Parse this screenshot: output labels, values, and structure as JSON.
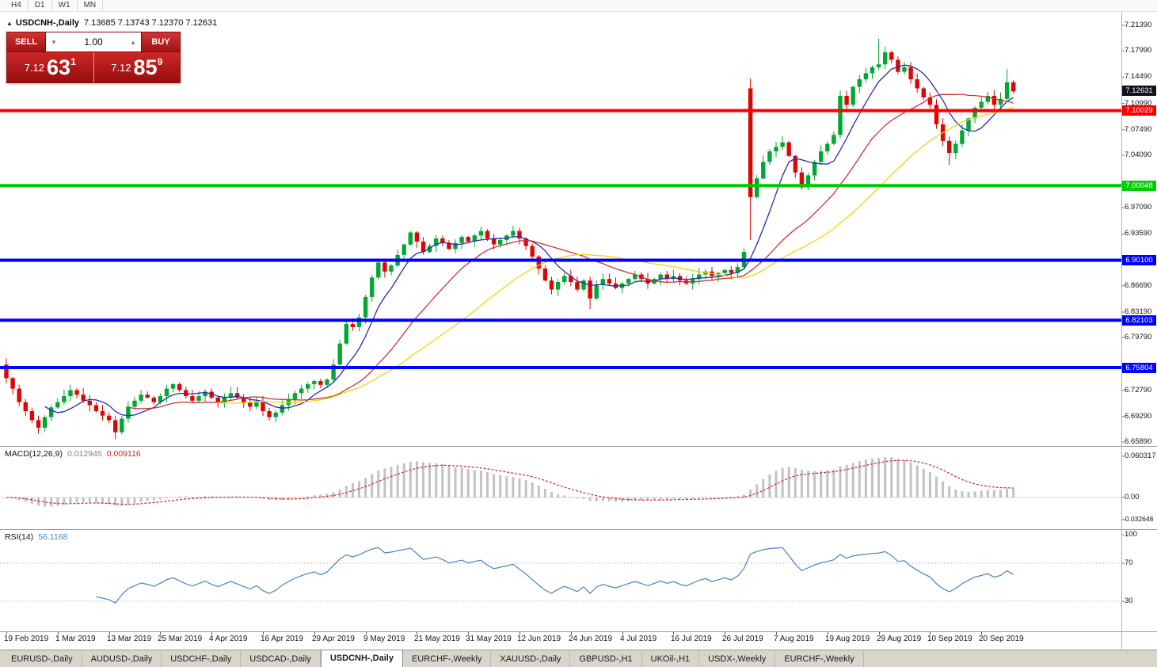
{
  "periods_toolbar": {
    "items": [
      "H4",
      "D1",
      "W1",
      "MN"
    ]
  },
  "chart_header": {
    "collapse_icon": "▲",
    "symbol": "USDCNH-,Daily",
    "ohlc": "7.13685 7.13743 7.12370 7.12631"
  },
  "trade_panel": {
    "sell_label": "SELL",
    "buy_label": "BUY",
    "volume": "1.00",
    "spinner_up": "▲",
    "spinner_down": "▼",
    "sell_price_main": "7.12",
    "sell_price_big": "63",
    "sell_price_sup": "1",
    "buy_price_main": "7.12",
    "buy_price_big": "85",
    "buy_price_sup": "9"
  },
  "colors": {
    "up": "#00A832",
    "down": "#DE0602",
    "ma_fast": "#2A2AB0",
    "ma_mid": "#CC3333",
    "ma_slow": "#EFD70A",
    "current_badge": "#11111E",
    "macd_hist": "#C2C2C2",
    "macd_signal": "#CC2A2A",
    "rsi_line": "#4A82C4"
  },
  "chart_data": {
    "type": "candlestick",
    "title": "USDCNH-,Daily",
    "price_min": 6.6536,
    "price_max": 7.2318,
    "closes": [
      6.744,
      6.73,
      6.712,
      6.7,
      6.688,
      6.678,
      6.692,
      6.705,
      6.712,
      6.72,
      6.728,
      6.722,
      6.714,
      6.708,
      6.7,
      6.694,
      6.688,
      6.672,
      6.69,
      6.706,
      6.714,
      6.722,
      6.718,
      6.712,
      6.72,
      6.73,
      6.736,
      6.728,
      6.72,
      6.714,
      6.72,
      6.726,
      6.718,
      6.712,
      6.718,
      6.724,
      6.718,
      6.712,
      6.706,
      6.712,
      6.7,
      6.692,
      6.698,
      6.708,
      6.716,
      6.724,
      6.73,
      6.736,
      6.74,
      6.735,
      6.742,
      6.762,
      6.79,
      6.816,
      6.812,
      6.825,
      6.852,
      6.878,
      6.898,
      6.886,
      6.894,
      6.908,
      6.922,
      6.938,
      6.926,
      6.912,
      6.92,
      6.93,
      6.924,
      6.916,
      6.924,
      6.932,
      6.926,
      6.934,
      6.94,
      6.93,
      6.922,
      6.928,
      6.934,
      6.94,
      6.93,
      6.92,
      6.906,
      6.89,
      6.874,
      6.862,
      6.872,
      6.88,
      6.872,
      6.862,
      6.874,
      6.85,
      6.868,
      6.876,
      6.87,
      6.864,
      6.87,
      6.876,
      6.882,
      6.876,
      6.87,
      6.876,
      6.882,
      6.876,
      6.88,
      6.874,
      6.87,
      6.876,
      6.882,
      6.886,
      6.88,
      6.884,
      6.888,
      6.884,
      6.892,
      6.912,
      6.985,
      7.01,
      7.032,
      7.046,
      7.052,
      7.058,
      7.04,
      7.018,
      6.998,
      7.014,
      7.032,
      7.046,
      7.056,
      7.068,
      7.12,
      7.108,
      7.132,
      7.142,
      7.15,
      7.158,
      7.162,
      7.178,
      7.168,
      7.152,
      7.158,
      7.142,
      7.13,
      7.118,
      7.108,
      7.082,
      7.06,
      7.044,
      7.056,
      7.074,
      7.09,
      7.104,
      7.112,
      7.12,
      7.108,
      7.116,
      7.138,
      7.126
    ],
    "overrides": [
      {
        "i": 0,
        "o": 6.762
      },
      {
        "i": 5,
        "l": 6.67
      },
      {
        "i": 17,
        "l": 6.663
      },
      {
        "i": 91,
        "l": 6.836
      },
      {
        "i": 116,
        "o": 7.13,
        "h": 7.143,
        "l": 6.928
      },
      {
        "i": 136,
        "h": 7.196
      },
      {
        "i": 147,
        "l": 7.028
      },
      {
        "i": 156,
        "h": 7.156
      }
    ],
    "moving_averages": [
      {
        "period": 7,
        "color_key": "ma_fast"
      },
      {
        "period": 20,
        "color_key": "ma_mid"
      },
      {
        "period": 34,
        "color_key": "ma_slow"
      }
    ],
    "hlines": [
      {
        "value": 7.10029,
        "label": "7.10029",
        "color": "#FF0000"
      },
      {
        "value": 7.00048,
        "label": "7.00048",
        "color": "#00CC00"
      },
      {
        "value": 6.901,
        "label": "6.90100",
        "color": "#0000FF"
      },
      {
        "value": 6.82103,
        "label": "6.82103",
        "color": "#0000FF"
      },
      {
        "value": 6.75804,
        "label": "6.75804",
        "color": "#0000FF"
      }
    ],
    "current_price": {
      "value": 7.12631,
      "label": "7.12631"
    },
    "y_ticks": [
      {
        "value": 7.2139,
        "label": "7.21390"
      },
      {
        "value": 7.1799,
        "label": "7.17990"
      },
      {
        "value": 7.1449,
        "label": "7.14490"
      },
      {
        "value": 7.1099,
        "label": "7.10990"
      },
      {
        "value": 7.0749,
        "label": "7.07490"
      },
      {
        "value": 7.0409,
        "label": "7.04090"
      },
      {
        "value": 6.9709,
        "label": "6.97090"
      },
      {
        "value": 6.9359,
        "label": "6.93590"
      },
      {
        "value": 6.8669,
        "label": "6.86690"
      },
      {
        "value": 6.8319,
        "label": "6.83190"
      },
      {
        "value": 6.7979,
        "label": "6.79790"
      },
      {
        "value": 6.7279,
        "label": "6.72790"
      },
      {
        "value": 6.6929,
        "label": "6.69290"
      },
      {
        "value": 6.6589,
        "label": "6.65890"
      }
    ],
    "x_axis_labels": [
      {
        "bar": 0,
        "label": "19 Feb 2019"
      },
      {
        "bar": 8,
        "label": "1 Mar 2019"
      },
      {
        "bar": 16,
        "label": "13 Mar 2019"
      },
      {
        "bar": 24,
        "label": "25 Mar 2019"
      },
      {
        "bar": 32,
        "label": "4 Apr 2019"
      },
      {
        "bar": 40,
        "label": "16 Apr 2019"
      },
      {
        "bar": 48,
        "label": "29 Apr 2019"
      },
      {
        "bar": 56,
        "label": "9 May 2019"
      },
      {
        "bar": 64,
        "label": "21 May 2019"
      },
      {
        "bar": 72,
        "label": "31 May 2019"
      },
      {
        "bar": 80,
        "label": "12 Jun 2019"
      },
      {
        "bar": 88,
        "label": "24 Jun 2019"
      },
      {
        "bar": 96,
        "label": "4 Jul 2019"
      },
      {
        "bar": 104,
        "label": "16 Jul 2019"
      },
      {
        "bar": 112,
        "label": "26 Jul 2019"
      },
      {
        "bar": 120,
        "label": "7 Aug 2019"
      },
      {
        "bar": 128,
        "label": "19 Aug 2019"
      },
      {
        "bar": 136,
        "label": "29 Aug 2019"
      },
      {
        "bar": 144,
        "label": "10 Sep 2019"
      },
      {
        "bar": 152,
        "label": "20 Sep 2019"
      }
    ],
    "indicators": {
      "macd": {
        "name": "MACD(12,26,9)",
        "value_main": "0.012945",
        "value_signal": "0.009116",
        "fast": 12,
        "slow": 26,
        "signal": 9,
        "y_ticks": [
          {
            "value": 0.060317,
            "label": "0.060317"
          },
          {
            "value": 0,
            "label": "0.00"
          },
          {
            "value": -0.032648,
            "label": "-0.032648"
          }
        ]
      },
      "rsi": {
        "name": "RSI(14)",
        "value": "56.1168",
        "period": 14,
        "levels": [
          70,
          30
        ],
        "y_ticks": [
          {
            "value": 100,
            "label": "100"
          },
          {
            "value": 70,
            "label": "70"
          },
          {
            "value": 30,
            "label": "30"
          }
        ]
      }
    }
  },
  "tab_bar": {
    "active_index": 4,
    "tabs": [
      {
        "label": "EURUSD-,Daily"
      },
      {
        "label": "AUDUSD-,Daily"
      },
      {
        "label": "USDCHF-,Daily"
      },
      {
        "label": "USDCAD-,Daily"
      },
      {
        "label": "USDCNH-,Daily"
      },
      {
        "label": "EURCHF-,Weekly"
      },
      {
        "label": "XAUUSD-,Daily"
      },
      {
        "label": "GBPUSD-,H1"
      },
      {
        "label": "UKOil-,H1"
      },
      {
        "label": "USDX-,Weekly"
      },
      {
        "label": "EURCHF-,Weekly"
      }
    ]
  }
}
